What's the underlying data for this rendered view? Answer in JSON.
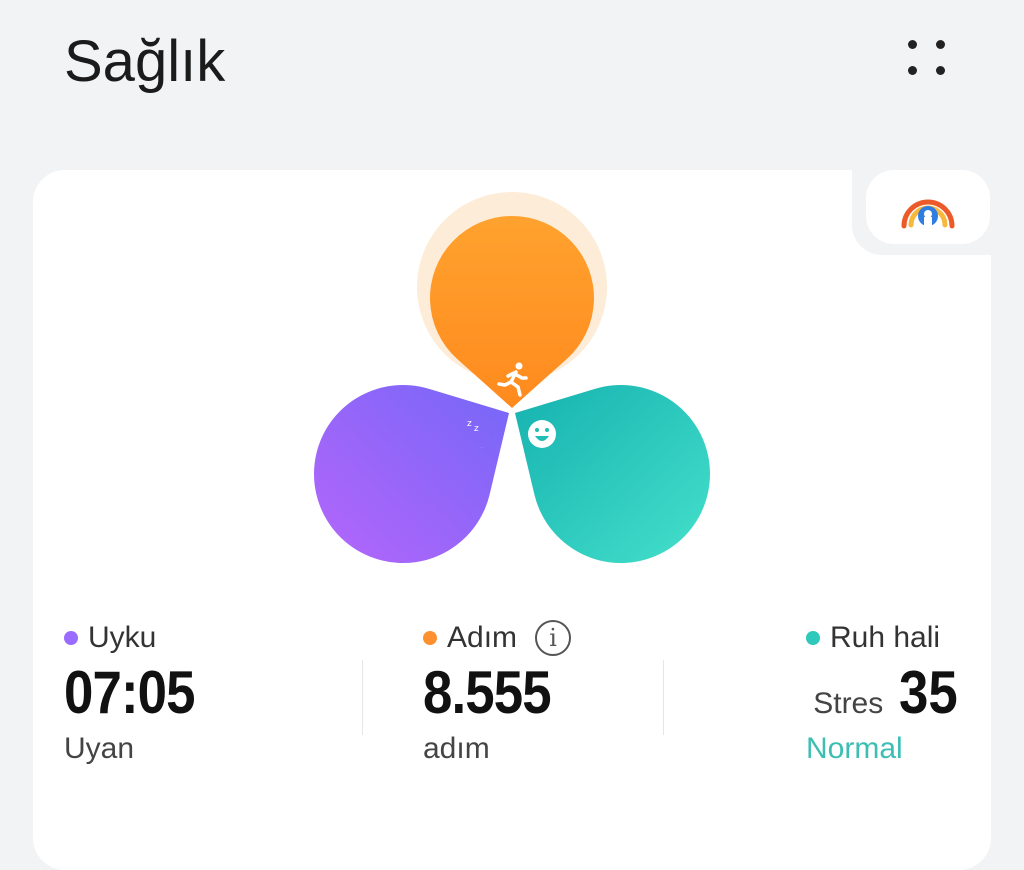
{
  "header": {
    "title": "Sağlık",
    "menu_icon": "four-dots-icon"
  },
  "colors": {
    "sleep": "#9a6bff",
    "steps": "#ff9030",
    "mood": "#2ec9bb",
    "normal": "#3cbfb2"
  },
  "stats": {
    "sleep": {
      "label": "Uyku",
      "value": "07:05",
      "sub": "Uyan"
    },
    "steps": {
      "label": "Adım",
      "value": "8.555",
      "sub": "adım",
      "info_icon": "i"
    },
    "mood": {
      "label": "Ruh hali",
      "prefix": "Stres",
      "value": "35",
      "sub": "Normal"
    }
  }
}
